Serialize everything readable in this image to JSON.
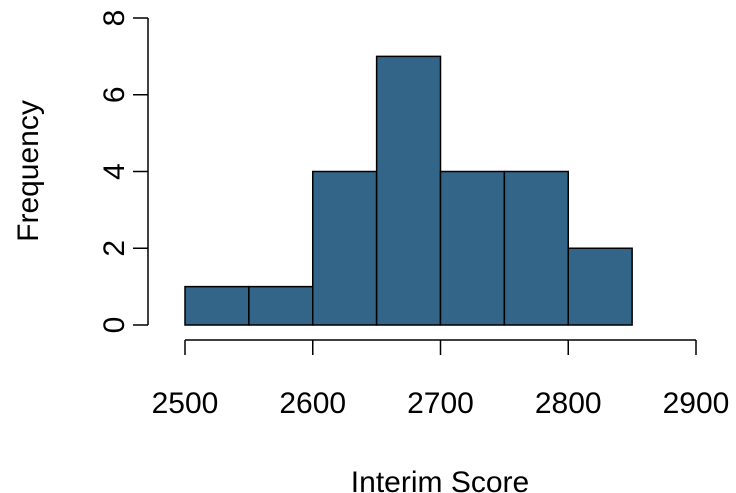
{
  "chart_data": {
    "type": "bar",
    "subtype": "histogram",
    "title": "",
    "xlabel": "Interim Score",
    "ylabel": "Frequency",
    "bins": [
      {
        "start": 2500,
        "end": 2550,
        "count": 1
      },
      {
        "start": 2550,
        "end": 2600,
        "count": 1
      },
      {
        "start": 2600,
        "end": 2650,
        "count": 4
      },
      {
        "start": 2650,
        "end": 2700,
        "count": 7
      },
      {
        "start": 2700,
        "end": 2750,
        "count": 4
      },
      {
        "start": 2750,
        "end": 2800,
        "count": 4
      },
      {
        "start": 2800,
        "end": 2850,
        "count": 2
      }
    ],
    "xlim": [
      2500,
      2900
    ],
    "ylim": [
      0,
      8
    ],
    "x_ticks": [
      "2500",
      "2600",
      "2700",
      "2800",
      "2900"
    ],
    "y_ticks": [
      "0",
      "2",
      "4",
      "6",
      "8"
    ],
    "bar_color": "#336589",
    "grid": false,
    "legend": "none"
  }
}
